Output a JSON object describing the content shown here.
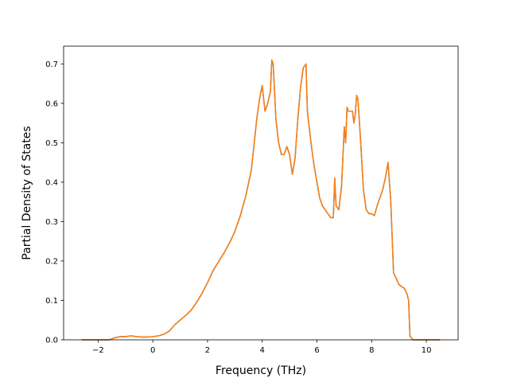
{
  "chart_data": {
    "type": "line",
    "title": "",
    "xlabel": "Frequency (THz)",
    "ylabel": "Partial Density of States",
    "xlim": [
      -3.26,
      11.16
    ],
    "ylim": [
      0,
      0.745
    ],
    "xticks": [
      -2,
      0,
      2,
      4,
      6,
      8,
      10
    ],
    "yticks": [
      0.0,
      0.1,
      0.2,
      0.3,
      0.4,
      0.5,
      0.6,
      0.7
    ],
    "grid": false,
    "series_colors": [
      "#1f77b4",
      "#ff7f0e"
    ],
    "series": [
      {
        "x": [
          -2.6,
          -1.6,
          -1.4,
          -1.2,
          -1.0,
          -0.8,
          -0.6,
          -0.4,
          -0.2,
          0.0,
          0.2,
          0.4,
          0.6,
          0.8,
          1.0,
          1.2,
          1.4,
          1.6,
          1.8,
          2.0,
          2.2,
          2.4,
          2.6,
          2.8,
          3.0,
          3.2,
          3.4,
          3.6,
          3.8,
          3.9,
          4.0,
          4.1,
          4.2,
          4.3,
          4.35,
          4.4,
          4.5,
          4.6,
          4.7,
          4.8,
          4.9,
          5.0,
          5.1,
          5.2,
          5.3,
          5.4,
          5.5,
          5.6,
          5.65,
          5.7,
          5.8,
          5.9,
          6.0,
          6.1,
          6.2,
          6.3,
          6.4,
          6.5,
          6.6,
          6.65,
          6.7,
          6.8,
          6.9,
          7.0,
          7.05,
          7.1,
          7.15,
          7.2,
          7.3,
          7.35,
          7.4,
          7.45,
          7.5,
          7.6,
          7.7,
          7.8,
          7.9,
          8.0,
          8.1,
          8.2,
          8.3,
          8.4,
          8.5,
          8.6,
          8.65,
          8.7,
          8.8,
          8.9,
          9.0,
          9.1,
          9.2,
          9.3,
          9.35,
          9.4,
          9.5,
          10.5
        ],
        "y": [
          0.0,
          0.0,
          0.005,
          0.008,
          0.008,
          0.01,
          0.008,
          0.007,
          0.007,
          0.008,
          0.01,
          0.014,
          0.022,
          0.038,
          0.05,
          0.062,
          0.075,
          0.095,
          0.118,
          0.145,
          0.175,
          0.198,
          0.22,
          0.245,
          0.275,
          0.315,
          0.365,
          0.43,
          0.56,
          0.61,
          0.645,
          0.58,
          0.6,
          0.63,
          0.71,
          0.7,
          0.56,
          0.5,
          0.47,
          0.47,
          0.49,
          0.47,
          0.42,
          0.46,
          0.56,
          0.64,
          0.69,
          0.7,
          0.58,
          0.55,
          0.49,
          0.44,
          0.4,
          0.36,
          0.34,
          0.33,
          0.32,
          0.31,
          0.31,
          0.41,
          0.34,
          0.33,
          0.39,
          0.54,
          0.5,
          0.59,
          0.58,
          0.58,
          0.58,
          0.55,
          0.57,
          0.62,
          0.61,
          0.5,
          0.38,
          0.33,
          0.32,
          0.32,
          0.315,
          0.34,
          0.36,
          0.38,
          0.41,
          0.45,
          0.4,
          0.35,
          0.17,
          0.155,
          0.14,
          0.135,
          0.13,
          0.115,
          0.1,
          0.01,
          0.0,
          0.0
        ]
      },
      {
        "x": [
          -2.6,
          -1.6,
          -1.4,
          -1.2,
          -1.0,
          -0.8,
          -0.6,
          -0.4,
          -0.2,
          0.0,
          0.2,
          0.4,
          0.6,
          0.8,
          1.0,
          1.2,
          1.4,
          1.6,
          1.8,
          2.0,
          2.2,
          2.4,
          2.6,
          2.8,
          3.0,
          3.2,
          3.4,
          3.6,
          3.8,
          3.9,
          4.0,
          4.1,
          4.2,
          4.3,
          4.35,
          4.4,
          4.5,
          4.6,
          4.7,
          4.8,
          4.9,
          5.0,
          5.1,
          5.2,
          5.3,
          5.4,
          5.5,
          5.6,
          5.65,
          5.7,
          5.8,
          5.9,
          6.0,
          6.1,
          6.2,
          6.3,
          6.4,
          6.5,
          6.6,
          6.65,
          6.7,
          6.8,
          6.9,
          7.0,
          7.05,
          7.1,
          7.15,
          7.2,
          7.3,
          7.35,
          7.4,
          7.45,
          7.5,
          7.6,
          7.7,
          7.8,
          7.9,
          8.0,
          8.1,
          8.2,
          8.3,
          8.4,
          8.5,
          8.6,
          8.65,
          8.7,
          8.8,
          8.9,
          9.0,
          9.1,
          9.2,
          9.3,
          9.35,
          9.4,
          9.5,
          10.5
        ],
        "y": [
          0.0,
          0.0,
          0.005,
          0.008,
          0.008,
          0.01,
          0.008,
          0.007,
          0.007,
          0.008,
          0.01,
          0.014,
          0.022,
          0.038,
          0.05,
          0.062,
          0.075,
          0.095,
          0.118,
          0.145,
          0.175,
          0.198,
          0.22,
          0.245,
          0.275,
          0.315,
          0.365,
          0.43,
          0.56,
          0.61,
          0.645,
          0.58,
          0.6,
          0.63,
          0.71,
          0.7,
          0.56,
          0.5,
          0.47,
          0.47,
          0.49,
          0.47,
          0.42,
          0.46,
          0.56,
          0.64,
          0.69,
          0.7,
          0.58,
          0.55,
          0.49,
          0.44,
          0.4,
          0.36,
          0.34,
          0.33,
          0.32,
          0.31,
          0.31,
          0.41,
          0.34,
          0.33,
          0.39,
          0.54,
          0.5,
          0.59,
          0.58,
          0.58,
          0.58,
          0.55,
          0.57,
          0.62,
          0.61,
          0.5,
          0.38,
          0.33,
          0.32,
          0.32,
          0.315,
          0.34,
          0.36,
          0.38,
          0.41,
          0.45,
          0.4,
          0.35,
          0.17,
          0.155,
          0.14,
          0.135,
          0.13,
          0.115,
          0.1,
          0.01,
          0.0,
          0.0
        ]
      }
    ]
  }
}
